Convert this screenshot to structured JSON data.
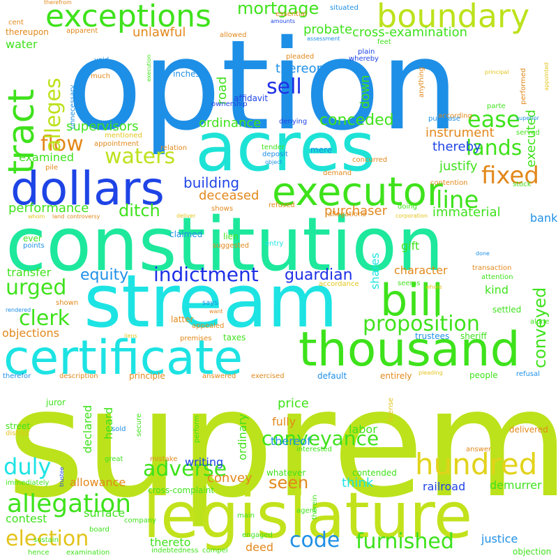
{
  "words": [
    {
      "text": "supreme",
      "color": "#bce21b"
    },
    {
      "text": "option",
      "color": "#1e8fe6"
    },
    {
      "text": "constitution",
      "color": "#1de89c"
    },
    {
      "text": "stream",
      "color": "#1de3e3"
    },
    {
      "text": "acres",
      "color": "#1de3d6"
    },
    {
      "text": "legislature",
      "color": "#c2e21b"
    },
    {
      "text": "certificate",
      "color": "#1de3e3"
    },
    {
      "text": "thousand",
      "color": "#3ee21b"
    },
    {
      "text": "dollars",
      "color": "#1e44e6"
    },
    {
      "text": "executor",
      "color": "#3ee21b"
    },
    {
      "text": "bill",
      "color": "#3ee21b"
    },
    {
      "text": "boundary",
      "color": "#bce21b"
    },
    {
      "text": "exceptions",
      "color": "#3ee21b"
    },
    {
      "text": "hundred",
      "color": "#e2d31b"
    },
    {
      "text": "tract",
      "color": "#3ee21b"
    },
    {
      "text": "allegation",
      "color": "#3ee21b"
    },
    {
      "text": "indictment",
      "color": "#1e2fe6"
    },
    {
      "text": "proposition",
      "color": "#3ee21b"
    },
    {
      "text": "conveyance",
      "color": "#3ee21b"
    },
    {
      "text": "furnished",
      "color": "#3ee21b"
    },
    {
      "text": "election",
      "color": "#e2c41b"
    },
    {
      "text": "adverse",
      "color": "#3ee21b"
    },
    {
      "text": "lands",
      "color": "#3ee21b"
    },
    {
      "text": "fixed",
      "color": "#e2881b"
    },
    {
      "text": "line",
      "color": "#3ee21b"
    },
    {
      "text": "ease",
      "color": "#3ee21b"
    },
    {
      "text": "flow",
      "color": "#e2881b"
    },
    {
      "text": "waters",
      "color": "#bce21b"
    },
    {
      "text": "alleges",
      "color": "#bce21b"
    },
    {
      "text": "sell",
      "color": "#1e2fe6"
    },
    {
      "text": "mortgage",
      "color": "#3ee21b"
    },
    {
      "text": "duly",
      "color": "#1de3e3"
    },
    {
      "text": "urged",
      "color": "#3ee21b"
    },
    {
      "text": "clerk",
      "color": "#3ee21b"
    },
    {
      "text": "code",
      "color": "#1e8fe6"
    },
    {
      "text": "conveyed",
      "color": "#3ee21b"
    },
    {
      "text": "seen",
      "color": "#e2881b"
    },
    {
      "text": "ditch",
      "color": "#3ee21b"
    },
    {
      "text": "guardian",
      "color": "#1e2fe6"
    },
    {
      "text": "equity",
      "color": "#1e8fe6"
    },
    {
      "text": "conceded",
      "color": "#3ee21b"
    },
    {
      "text": "building",
      "color": "#1e44e6"
    },
    {
      "text": "performance",
      "color": "#3ee21b"
    },
    {
      "text": "supervisors",
      "color": "#3ee21b"
    },
    {
      "text": "thereon",
      "color": "#1e8fe6"
    },
    {
      "text": "probate",
      "color": "#3ee21b"
    },
    {
      "text": "cross-examination",
      "color": "#3ee21b"
    },
    {
      "text": "unlawful",
      "color": "#e2881b"
    },
    {
      "text": "water",
      "color": "#3ee21b"
    },
    {
      "text": "road",
      "color": "#3ee21b"
    },
    {
      "text": "down",
      "color": "#3ee21b"
    },
    {
      "text": "ordinance",
      "color": "#3ee21b"
    },
    {
      "text": "instrument",
      "color": "#e2881b"
    },
    {
      "text": "thereby",
      "color": "#1e44e6"
    },
    {
      "text": "justify",
      "color": "#3ee21b"
    },
    {
      "text": "executed",
      "color": "#3ee21b"
    },
    {
      "text": "immaterial",
      "color": "#3ee21b"
    },
    {
      "text": "purchaser",
      "color": "#e2881b"
    },
    {
      "text": "deceased",
      "color": "#e2881b"
    },
    {
      "text": "bank",
      "color": "#1e8fe6"
    },
    {
      "text": "gift",
      "color": "#3ee21b"
    },
    {
      "text": "character",
      "color": "#e2881b"
    },
    {
      "text": "kind",
      "color": "#3ee21b"
    },
    {
      "text": "shares",
      "color": "#1de3e3"
    },
    {
      "text": "transfer",
      "color": "#3ee21b"
    },
    {
      "text": "examined",
      "color": "#3ee21b"
    },
    {
      "text": "objections",
      "color": "#e2881b"
    },
    {
      "text": "declared",
      "color": "#3ee21b"
    },
    {
      "text": "heard",
      "color": "#3ee21b"
    },
    {
      "text": "ordinary",
      "color": "#3ee21b"
    },
    {
      "text": "price",
      "color": "#3ee21b"
    },
    {
      "text": "fully",
      "color": "#e2881b"
    },
    {
      "text": "labor",
      "color": "#3ee21b"
    },
    {
      "text": "thereof",
      "color": "#1e8fe6"
    },
    {
      "text": "writing",
      "color": "#1e44e6"
    },
    {
      "text": "convey",
      "color": "#e2881b"
    },
    {
      "text": "allowance",
      "color": "#e2881b"
    },
    {
      "text": "think",
      "color": "#1de3e3"
    },
    {
      "text": "railroad",
      "color": "#1e44e6"
    },
    {
      "text": "demurrer",
      "color": "#3ee21b"
    },
    {
      "text": "contest",
      "color": "#3ee21b"
    },
    {
      "text": "surface",
      "color": "#3ee21b"
    },
    {
      "text": "cross-complaint",
      "color": "#3ee21b"
    },
    {
      "text": "thereto",
      "color": "#3ee21b"
    },
    {
      "text": "deed",
      "color": "#e2881b"
    },
    {
      "text": "justice",
      "color": "#1e8fe6"
    },
    {
      "text": "street",
      "color": "#3ee21b"
    },
    {
      "text": "juror",
      "color": "#3ee21b"
    },
    {
      "text": "immediately",
      "color": "#3ee21b"
    },
    {
      "text": "indebtedness",
      "color": "#3ee21b"
    },
    {
      "text": "examination",
      "color": "#3ee21b"
    },
    {
      "text": "engaged",
      "color": "#3ee21b"
    },
    {
      "text": "objection",
      "color": "#3ee21b"
    },
    {
      "text": "hence",
      "color": "#3ee21b"
    },
    {
      "text": "board",
      "color": "#3ee21b"
    },
    {
      "text": "sustain",
      "color": "#3ee21b"
    },
    {
      "text": "compel",
      "color": "#3ee21b"
    },
    {
      "text": "company",
      "color": "#3ee21b"
    },
    {
      "text": "main",
      "color": "#3ee21b"
    },
    {
      "text": "agent",
      "color": "#3ee21b"
    },
    {
      "text": "therein",
      "color": "#3ee21b"
    },
    {
      "text": "whatever",
      "color": "#3ee21b"
    },
    {
      "text": "contended",
      "color": "#3ee21b"
    },
    {
      "text": "interested",
      "color": "#3ee21b"
    },
    {
      "text": "answer",
      "color": "#e2881b"
    },
    {
      "text": "mistake",
      "color": "#e2881b"
    },
    {
      "text": "great",
      "color": "#3ee21b"
    },
    {
      "text": "sold",
      "color": "#1e8fe6"
    },
    {
      "text": "perform",
      "color": "#3ee21b"
    },
    {
      "text": "secure",
      "color": "#3ee21b"
    },
    {
      "text": "district",
      "color": "#e2c41b"
    },
    {
      "text": "delivered",
      "color": "#e2881b"
    },
    {
      "text": "license",
      "color": "#e2c41b"
    },
    {
      "text": "trustee",
      "color": "#1e44e6"
    },
    {
      "text": "therefor",
      "color": "#1e8fe6"
    },
    {
      "text": "description",
      "color": "#e2881b"
    },
    {
      "text": "principle",
      "color": "#e2881b"
    },
    {
      "text": "answered",
      "color": "#e2881b"
    },
    {
      "text": "exercised",
      "color": "#e2881b"
    },
    {
      "text": "default",
      "color": "#1e8fe6"
    },
    {
      "text": "entirely",
      "color": "#e2881b"
    },
    {
      "text": "pleading",
      "color": "#e2c41b"
    },
    {
      "text": "people",
      "color": "#3ee21b"
    },
    {
      "text": "refusal",
      "color": "#1e8fe6"
    },
    {
      "text": "rendered",
      "color": "#1e8fe6"
    },
    {
      "text": "shown",
      "color": "#e2881b"
    },
    {
      "text": "latter",
      "color": "#e2881b"
    },
    {
      "text": "appealed",
      "color": "#e2881b"
    },
    {
      "text": "premises",
      "color": "#e2881b"
    },
    {
      "text": "taxes",
      "color": "#3ee21b"
    },
    {
      "text": "trustees",
      "color": "#1e8fe6"
    },
    {
      "text": "sheriff",
      "color": "#3ee21b"
    },
    {
      "text": "liens",
      "color": "#e2c41b"
    },
    {
      "text": "want",
      "color": "#e2881b"
    },
    {
      "text": "says",
      "color": "#1e8fe6"
    },
    {
      "text": "settled",
      "color": "#3ee21b"
    },
    {
      "text": "alone",
      "color": "#3ee21b"
    },
    {
      "text": "ever",
      "color": "#3ee21b"
    },
    {
      "text": "points",
      "color": "#1e8fe6"
    },
    {
      "text": "claimed",
      "color": "#1e8fe6"
    },
    {
      "text": "lien",
      "color": "#3ee21b"
    },
    {
      "text": "suggested",
      "color": "#e2881b"
    },
    {
      "text": "entry",
      "color": "#1de3e3"
    },
    {
      "text": "shows",
      "color": "#e2881b"
    },
    {
      "text": "accordance",
      "color": "#e2c41b"
    },
    {
      "text": "seems",
      "color": "#3ee21b"
    },
    {
      "text": "whole",
      "color": "#e2c41b"
    },
    {
      "text": "attention",
      "color": "#3ee21b"
    },
    {
      "text": "transaction",
      "color": "#e2881b"
    },
    {
      "text": "done",
      "color": "#1e8fe6"
    },
    {
      "text": "allegations",
      "color": "#e2881b"
    },
    {
      "text": "corporation",
      "color": "#e2c41b"
    },
    {
      "text": "doing",
      "color": "#3ee21b"
    },
    {
      "text": "refused",
      "color": "#e2881b"
    },
    {
      "text": "deliver",
      "color": "#e2c41b"
    },
    {
      "text": "land",
      "color": "#e2881b"
    },
    {
      "text": "controversy",
      "color": "#e2881b"
    },
    {
      "text": "whom",
      "color": "#e2c41b"
    },
    {
      "text": "pile",
      "color": "#e2881b"
    },
    {
      "text": "relation",
      "color": "#e2881b"
    },
    {
      "text": "appointment",
      "color": "#e2881b"
    },
    {
      "text": "mentioned",
      "color": "#e2c41b"
    },
    {
      "text": "tender",
      "color": "#3ee21b"
    },
    {
      "text": "deposit",
      "color": "#1e8fe6"
    },
    {
      "text": "object",
      "color": "#1e8fe6"
    },
    {
      "text": "concurred",
      "color": "#e2881b"
    },
    {
      "text": "mere",
      "color": "#1e8fe6"
    },
    {
      "text": "demand",
      "color": "#e2881b"
    },
    {
      "text": "contention",
      "color": "#e2881b"
    },
    {
      "text": "stock",
      "color": "#3ee21b"
    },
    {
      "text": "according",
      "color": "#e2881b"
    },
    {
      "text": "purchase",
      "color": "#1e8fe6"
    },
    {
      "text": "parte",
      "color": "#3ee21b"
    },
    {
      "text": "served",
      "color": "#3ee21b"
    },
    {
      "text": "superior",
      "color": "#1e8fe6"
    },
    {
      "text": "performed",
      "color": "#e2881b"
    },
    {
      "text": "appointed",
      "color": "#e2c41b"
    },
    {
      "text": "principal",
      "color": "#e2c41b"
    },
    {
      "text": "denying",
      "color": "#1e44e6"
    },
    {
      "text": "affidavit",
      "color": "#1e44e6"
    },
    {
      "text": "ownership",
      "color": "#1e44e6"
    },
    {
      "text": "unnecessary",
      "color": "#1e8fe6"
    },
    {
      "text": "execution",
      "color": "#3ee21b"
    },
    {
      "text": "much",
      "color": "#e2881b"
    },
    {
      "text": "void",
      "color": "#1e8fe6"
    },
    {
      "text": "inches",
      "color": "#1e8fe6"
    },
    {
      "text": "apparent",
      "color": "#e2881b"
    },
    {
      "text": "thereupon",
      "color": "#e2881b"
    },
    {
      "text": "cent",
      "color": "#e2881b"
    },
    {
      "text": "therefrom",
      "color": "#e2881b"
    },
    {
      "text": "essential",
      "color": "#e2881b"
    },
    {
      "text": "amounts",
      "color": "#1e44e6"
    },
    {
      "text": "situated",
      "color": "#1e8fe6"
    },
    {
      "text": "assessment",
      "color": "#1e8fe6"
    },
    {
      "text": "feet",
      "color": "#3ee21b"
    },
    {
      "text": "allowed",
      "color": "#e2881b"
    },
    {
      "text": "pleaded",
      "color": "#e2881b"
    },
    {
      "text": "whereby",
      "color": "#1e44e6"
    },
    {
      "text": "plain",
      "color": "#1e44e6"
    },
    {
      "text": "anything",
      "color": "#e2881b"
    },
    {
      "text": "tract",
      "color": "#3ee21b"
    }
  ]
}
